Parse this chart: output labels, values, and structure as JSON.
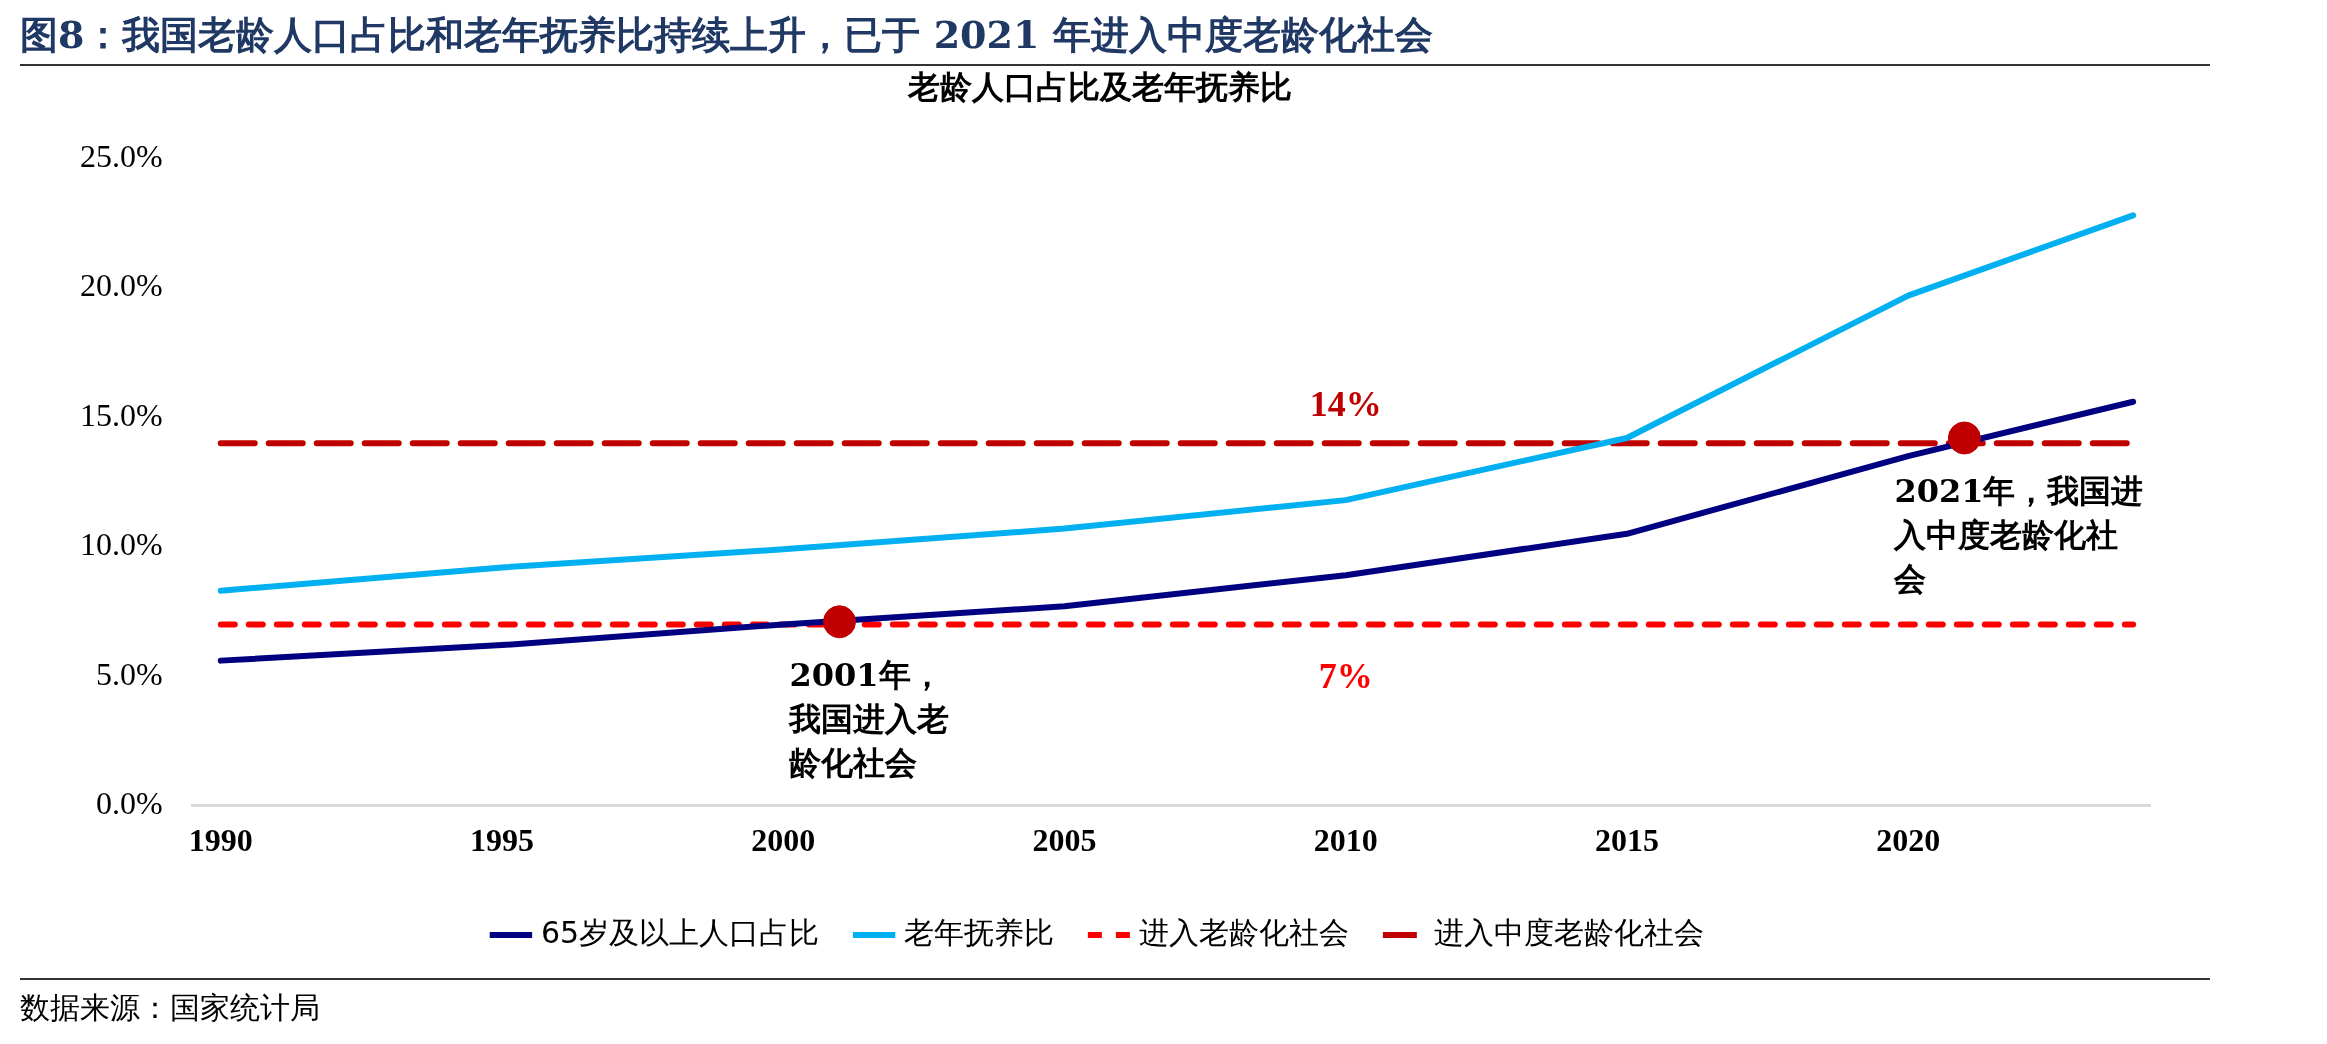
{
  "chart_data": {
    "type": "line",
    "title": "图8：我国老龄人口占比和老年抚养比持续上升，已于 2021 年进入中度老龄化社会",
    "subtitle": "老龄人口占比及老年抚养比",
    "x": [
      1990,
      1995,
      2000,
      2005,
      2010,
      2015,
      2020,
      2024
    ],
    "series": [
      {
        "name": "65岁及以上人口占比",
        "color": "#000080",
        "values": [
          5.6,
          6.2,
          7.0,
          7.7,
          8.9,
          10.5,
          13.5,
          15.6
        ]
      },
      {
        "name": "老年抚养比",
        "color": "#00b0f0",
        "values": [
          8.3,
          9.2,
          9.9,
          10.7,
          11.8,
          14.2,
          19.7,
          22.8
        ]
      },
      {
        "name": "进入老龄化社会",
        "color": "#ff0000",
        "type": "line",
        "line_style": "dashed",
        "x": [
          1990,
          2024
        ],
        "values": [
          7,
          7
        ]
      },
      {
        "name": "进入中度老龄化社会",
        "color": "#c00000",
        "type": "line",
        "line_style": "dashed",
        "x": [
          1990,
          2024
        ],
        "values": [
          14,
          14
        ]
      },
      {
        "type": "scatter",
        "color": "#c00000",
        "marker": "circle",
        "x": [
          2001,
          2021
        ],
        "values": [
          7.1,
          14.2
        ]
      }
    ],
    "xlim": [
      1989.5,
      2024.3
    ],
    "xticks": [
      1990,
      1995,
      2000,
      2005,
      2010,
      2015,
      2020
    ],
    "ylim": [
      0,
      25
    ],
    "yticks": [
      {
        "value": 0,
        "label": "0.0%"
      },
      {
        "value": 5,
        "label": "5.0%"
      },
      {
        "value": 10,
        "label": "10.0%"
      },
      {
        "value": 15,
        "label": "15.0%"
      },
      {
        "value": 20,
        "label": "20.0%"
      },
      {
        "value": 25,
        "label": "25.0%"
      }
    ],
    "grid": false,
    "legend": "bottom",
    "marker": "none",
    "line_style": "solid",
    "annotations": [
      {
        "text": "14%",
        "x": 2010,
        "y": 14
      },
      {
        "text": "7%",
        "x": 2010,
        "y": 7
      },
      {
        "text": "2001年，我国进入老龄化社会",
        "x": 2001,
        "y": 7.1
      },
      {
        "text": "2021年，我国进入中度老龄化社会",
        "x": 2021,
        "y": 14.2
      },
      "数据来源：国家统计局"
    ]
  }
}
